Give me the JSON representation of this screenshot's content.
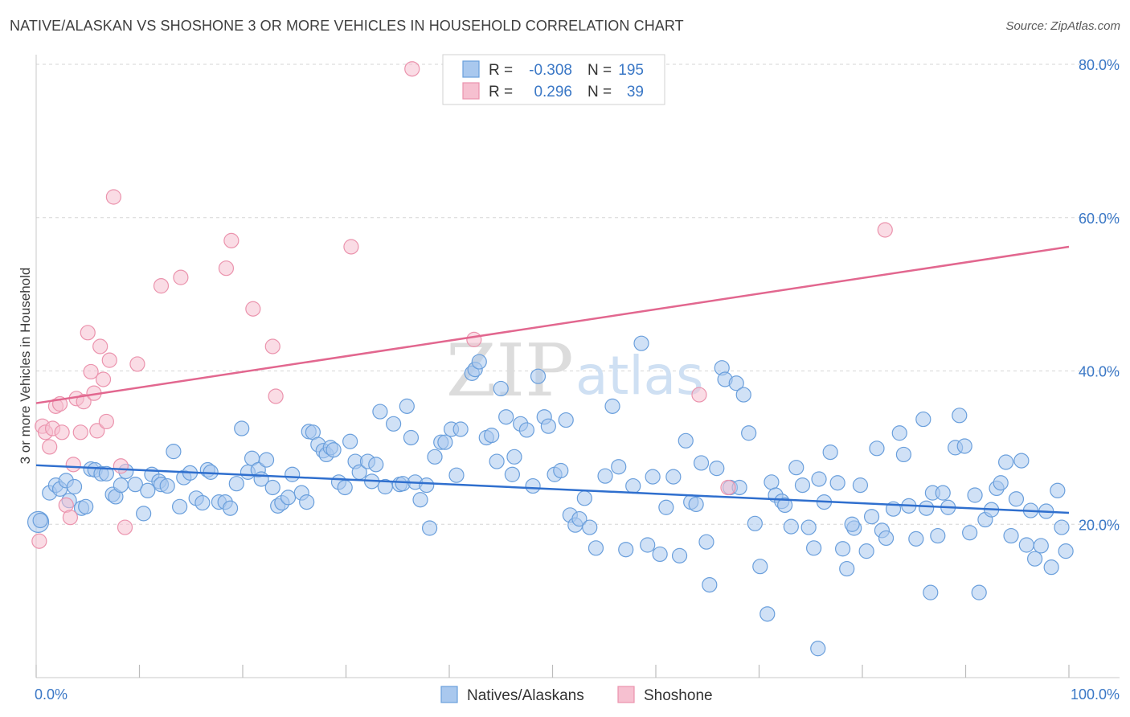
{
  "header": {
    "title": "NATIVE/ALASKAN VS SHOSHONE 3 OR MORE VEHICLES IN HOUSEHOLD CORRELATION CHART",
    "source": "Source: ZipAtlas.com"
  },
  "watermark": {
    "zip": "ZIP",
    "atlas": "atlas"
  },
  "colors": {
    "blue_fill": "#a9c8ee",
    "blue_stroke": "#6a9fdc",
    "blue_line": "#2f6fce",
    "pink_fill": "#f6c0d0",
    "pink_stroke": "#eb93ad",
    "pink_line": "#e2678f",
    "tick_text": "#3b78c6",
    "grid": "#d6d6d6"
  },
  "legend_top": {
    "rows": [
      {
        "r_label": "R =",
        "r_value": "-0.308",
        "n_label": "N =",
        "n_value": "195"
      },
      {
        "r_label": "R =",
        "r_value": "0.296",
        "n_label": "N =",
        "n_value": "39"
      }
    ]
  },
  "legend_bottom": {
    "items": [
      "Natives/Alaskans",
      "Shoshone"
    ]
  },
  "chart_data": {
    "type": "scatter",
    "xlabel": "",
    "ylabel": "3 or more Vehicles in Household",
    "xlim": [
      0,
      100
    ],
    "ylim": [
      0,
      82
    ],
    "x_tick_labels": [
      "0.0%",
      "100.0%"
    ],
    "y_ticks": [
      20,
      40,
      60,
      80
    ],
    "y_tick_labels": [
      "20.0%",
      "40.0%",
      "60.0%",
      "80.0%"
    ],
    "grid": true,
    "legend_position": "top-center",
    "series": [
      {
        "name": "Natives/Alaskans",
        "R": -0.308,
        "N": 195,
        "trend": {
          "x": [
            0,
            100
          ],
          "y": [
            27.7,
            21.5
          ]
        },
        "points": [
          [
            0.2,
            20.3
          ],
          [
            0.4,
            20.5
          ],
          [
            1.3,
            24.1
          ],
          [
            1.9,
            25.1
          ],
          [
            2.3,
            24.6
          ],
          [
            2.9,
            25.7
          ],
          [
            3.2,
            23.1
          ],
          [
            3.7,
            24.9
          ],
          [
            4.4,
            22.1
          ],
          [
            4.8,
            22.3
          ],
          [
            5.3,
            27.2
          ],
          [
            5.7,
            27.1
          ],
          [
            6.3,
            26.6
          ],
          [
            6.8,
            26.6
          ],
          [
            7.4,
            23.9
          ],
          [
            7.7,
            23.6
          ],
          [
            8.2,
            25.1
          ],
          [
            8.7,
            26.9
          ],
          [
            9.6,
            25.2
          ],
          [
            10.4,
            21.4
          ],
          [
            10.8,
            24.4
          ],
          [
            11.2,
            26.5
          ],
          [
            11.9,
            25.6
          ],
          [
            12.1,
            25.2
          ],
          [
            12.7,
            25.0
          ],
          [
            13.3,
            29.5
          ],
          [
            13.9,
            22.3
          ],
          [
            14.3,
            26.1
          ],
          [
            14.9,
            26.7
          ],
          [
            15.5,
            23.4
          ],
          [
            16.1,
            22.8
          ],
          [
            16.6,
            27.1
          ],
          [
            16.9,
            26.8
          ],
          [
            17.7,
            22.9
          ],
          [
            18.3,
            22.9
          ],
          [
            18.8,
            22.1
          ],
          [
            19.4,
            25.3
          ],
          [
            19.9,
            32.5
          ],
          [
            20.5,
            26.8
          ],
          [
            20.9,
            28.6
          ],
          [
            21.5,
            27.1
          ],
          [
            21.8,
            25.9
          ],
          [
            22.3,
            28.4
          ],
          [
            22.9,
            24.8
          ],
          [
            23.4,
            22.4
          ],
          [
            23.8,
            22.8
          ],
          [
            24.4,
            23.5
          ],
          [
            24.8,
            26.5
          ],
          [
            25.7,
            24.1
          ],
          [
            26.2,
            22.9
          ],
          [
            26.4,
            32.1
          ],
          [
            26.8,
            32.0
          ],
          [
            27.3,
            30.4
          ],
          [
            27.8,
            29.6
          ],
          [
            28.1,
            29.1
          ],
          [
            28.5,
            30.0
          ],
          [
            28.8,
            29.7
          ],
          [
            29.3,
            25.5
          ],
          [
            29.9,
            24.8
          ],
          [
            30.4,
            30.8
          ],
          [
            30.9,
            28.2
          ],
          [
            31.3,
            26.8
          ],
          [
            32.1,
            28.2
          ],
          [
            32.5,
            25.6
          ],
          [
            32.9,
            27.8
          ],
          [
            33.3,
            34.7
          ],
          [
            33.8,
            24.9
          ],
          [
            34.6,
            33.1
          ],
          [
            35.2,
            25.2
          ],
          [
            35.5,
            25.3
          ],
          [
            35.9,
            35.4
          ],
          [
            36.3,
            31.3
          ],
          [
            36.7,
            25.5
          ],
          [
            37.2,
            23.2
          ],
          [
            37.8,
            25.1
          ],
          [
            38.1,
            19.5
          ],
          [
            38.6,
            28.8
          ],
          [
            39.2,
            30.7
          ],
          [
            39.6,
            30.7
          ],
          [
            40.2,
            32.4
          ],
          [
            40.7,
            26.4
          ],
          [
            41.1,
            32.4
          ],
          [
            42.2,
            39.7
          ],
          [
            42.5,
            40.2
          ],
          [
            42.9,
            41.2
          ],
          [
            43.6,
            31.3
          ],
          [
            44.1,
            31.6
          ],
          [
            44.6,
            28.2
          ],
          [
            45.0,
            37.7
          ],
          [
            45.5,
            34.0
          ],
          [
            46.1,
            26.5
          ],
          [
            46.3,
            28.8
          ],
          [
            46.9,
            33.1
          ],
          [
            47.5,
            32.3
          ],
          [
            48.1,
            25.0
          ],
          [
            48.6,
            39.3
          ],
          [
            49.2,
            34.0
          ],
          [
            49.6,
            32.8
          ],
          [
            50.2,
            26.5
          ],
          [
            50.8,
            27.0
          ],
          [
            51.3,
            33.6
          ],
          [
            51.7,
            21.2
          ],
          [
            52.2,
            19.9
          ],
          [
            52.6,
            20.7
          ],
          [
            53.1,
            23.4
          ],
          [
            53.6,
            19.6
          ],
          [
            54.2,
            16.9
          ],
          [
            55.1,
            26.3
          ],
          [
            55.8,
            35.4
          ],
          [
            56.4,
            27.5
          ],
          [
            57.1,
            16.7
          ],
          [
            57.8,
            25.0
          ],
          [
            58.6,
            43.6
          ],
          [
            59.2,
            17.3
          ],
          [
            59.7,
            26.2
          ],
          [
            60.4,
            16.1
          ],
          [
            61.0,
            22.2
          ],
          [
            61.7,
            26.2
          ],
          [
            62.3,
            15.9
          ],
          [
            62.9,
            30.9
          ],
          [
            63.4,
            22.9
          ],
          [
            63.9,
            22.6
          ],
          [
            64.4,
            28.0
          ],
          [
            64.9,
            17.7
          ],
          [
            65.2,
            12.1
          ],
          [
            65.9,
            27.3
          ],
          [
            66.4,
            40.4
          ],
          [
            66.7,
            38.9
          ],
          [
            67.2,
            24.8
          ],
          [
            67.8,
            38.4
          ],
          [
            68.1,
            24.8
          ],
          [
            68.5,
            36.9
          ],
          [
            69.0,
            31.9
          ],
          [
            69.6,
            20.1
          ],
          [
            70.1,
            14.5
          ],
          [
            70.8,
            8.3
          ],
          [
            71.2,
            25.5
          ],
          [
            71.6,
            23.8
          ],
          [
            72.2,
            23.0
          ],
          [
            72.5,
            22.5
          ],
          [
            73.1,
            19.7
          ],
          [
            73.6,
            27.4
          ],
          [
            74.2,
            25.1
          ],
          [
            74.8,
            19.6
          ],
          [
            75.3,
            16.9
          ],
          [
            75.8,
            25.9
          ],
          [
            76.3,
            22.9
          ],
          [
            76.9,
            29.4
          ],
          [
            77.6,
            25.4
          ],
          [
            78.1,
            16.8
          ],
          [
            78.5,
            14.2
          ],
          [
            79.2,
            19.5
          ],
          [
            79.8,
            25.1
          ],
          [
            80.4,
            16.5
          ],
          [
            80.9,
            21.0
          ],
          [
            81.4,
            29.9
          ],
          [
            81.9,
            19.2
          ],
          [
            82.3,
            18.2
          ],
          [
            83.0,
            22.0
          ],
          [
            83.6,
            31.9
          ],
          [
            84.0,
            29.1
          ],
          [
            84.5,
            22.4
          ],
          [
            85.2,
            18.1
          ],
          [
            85.9,
            33.7
          ],
          [
            86.2,
            22.1
          ],
          [
            86.8,
            24.1
          ],
          [
            87.3,
            18.5
          ],
          [
            87.8,
            24.1
          ],
          [
            88.3,
            22.2
          ],
          [
            89.0,
            30.0
          ],
          [
            89.4,
            34.2
          ],
          [
            89.9,
            30.2
          ],
          [
            90.4,
            18.9
          ],
          [
            90.9,
            23.8
          ],
          [
            91.3,
            11.1
          ],
          [
            91.9,
            20.6
          ],
          [
            92.5,
            21.9
          ],
          [
            93.0,
            24.7
          ],
          [
            93.4,
            25.4
          ],
          [
            93.9,
            28.1
          ],
          [
            94.4,
            18.5
          ],
          [
            94.9,
            23.3
          ],
          [
            95.4,
            28.3
          ],
          [
            95.9,
            17.3
          ],
          [
            96.3,
            21.8
          ],
          [
            96.7,
            15.5
          ],
          [
            97.3,
            17.2
          ],
          [
            97.8,
            21.7
          ],
          [
            98.3,
            14.4
          ],
          [
            98.9,
            24.4
          ],
          [
            99.3,
            19.6
          ],
          [
            99.7,
            16.5
          ],
          [
            75.7,
            3.8
          ],
          [
            86.6,
            11.1
          ],
          [
            79.0,
            20.0
          ]
        ]
      },
      {
        "name": "Shoshone",
        "R": 0.296,
        "N": 39,
        "trend": {
          "x": [
            0,
            100
          ],
          "y": [
            35.8,
            56.2
          ]
        },
        "points": [
          [
            0.3,
            17.8
          ],
          [
            0.6,
            32.8
          ],
          [
            0.9,
            32.0
          ],
          [
            1.3,
            30.1
          ],
          [
            1.6,
            32.5
          ],
          [
            1.9,
            35.4
          ],
          [
            2.3,
            35.7
          ],
          [
            2.5,
            32.0
          ],
          [
            2.9,
            22.5
          ],
          [
            3.3,
            20.9
          ],
          [
            3.6,
            27.8
          ],
          [
            3.9,
            36.4
          ],
          [
            4.3,
            32.0
          ],
          [
            4.6,
            36.0
          ],
          [
            5.0,
            45.0
          ],
          [
            5.3,
            39.9
          ],
          [
            5.6,
            37.1
          ],
          [
            5.9,
            32.2
          ],
          [
            6.2,
            43.2
          ],
          [
            6.5,
            38.9
          ],
          [
            6.8,
            33.4
          ],
          [
            7.1,
            41.4
          ],
          [
            7.5,
            62.7
          ],
          [
            8.2,
            27.6
          ],
          [
            8.6,
            19.6
          ],
          [
            9.8,
            40.9
          ],
          [
            12.1,
            51.1
          ],
          [
            14.0,
            52.2
          ],
          [
            18.4,
            53.4
          ],
          [
            18.9,
            57.0
          ],
          [
            21.0,
            48.1
          ],
          [
            22.9,
            43.2
          ],
          [
            23.2,
            36.7
          ],
          [
            30.5,
            56.2
          ],
          [
            36.4,
            79.4
          ],
          [
            42.4,
            44.1
          ],
          [
            64.2,
            36.9
          ],
          [
            67.0,
            24.8
          ],
          [
            82.2,
            58.4
          ]
        ]
      }
    ]
  }
}
